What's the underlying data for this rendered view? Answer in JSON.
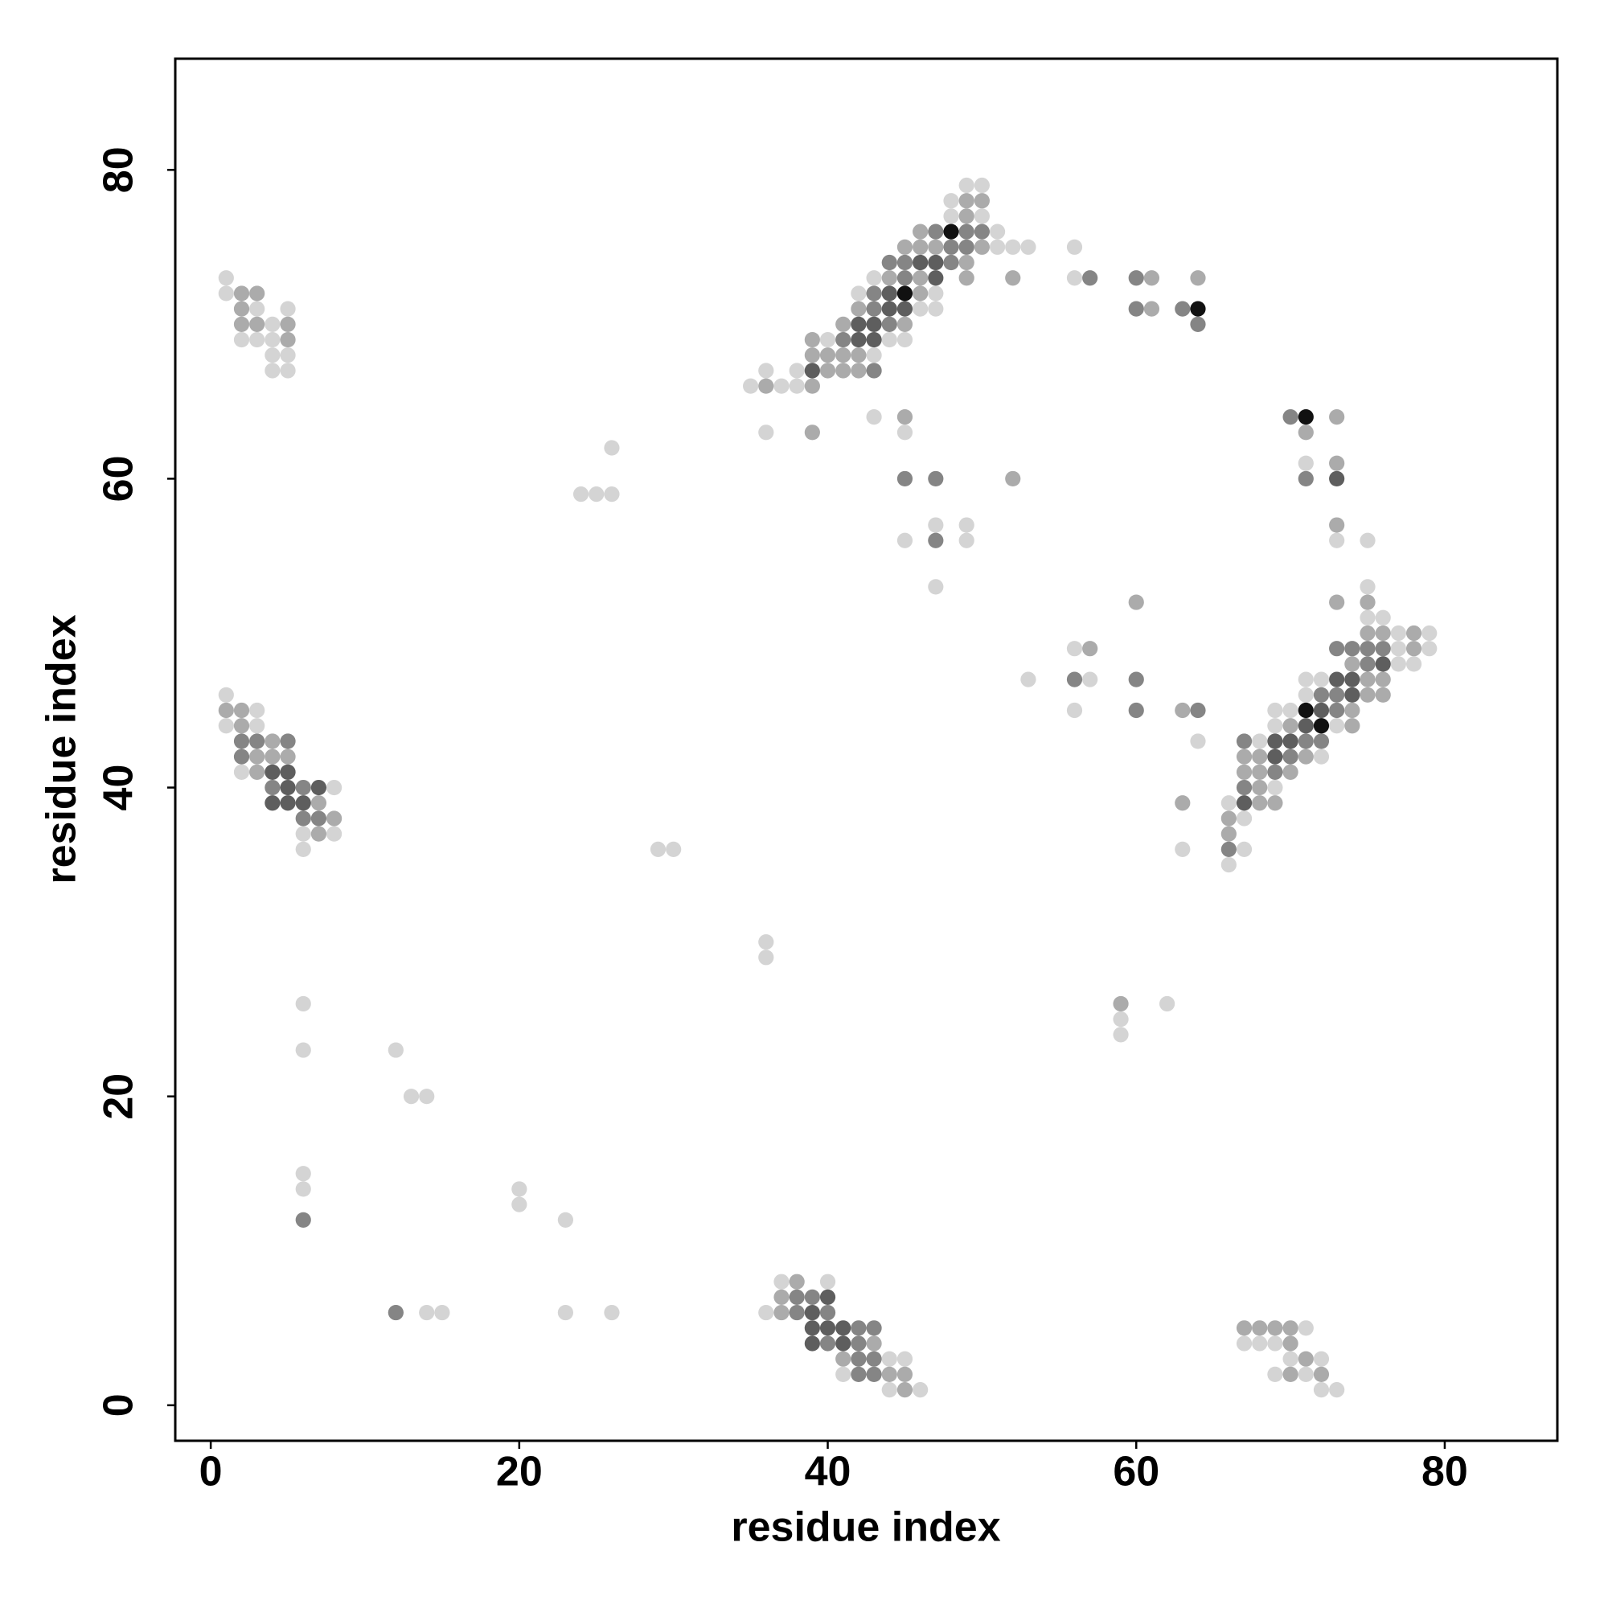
{
  "chart_data": {
    "type": "scatter",
    "x_label": "residue index",
    "y_label": "residue index",
    "xlim": [
      -2.3,
      87.3
    ],
    "ylim": [
      -2.3,
      87.2
    ],
    "xticks": [
      0,
      20,
      40,
      60,
      80
    ],
    "yticks": [
      0,
      20,
      40,
      60,
      80
    ],
    "series": [
      {
        "color": "#d4d4d4",
        "x": [
          1,
          1,
          3,
          5,
          4,
          2,
          3,
          4,
          4,
          5,
          4,
          5,
          1,
          3,
          1,
          3,
          2,
          8,
          6,
          8,
          6,
          6,
          6,
          12,
          13,
          14,
          6,
          6,
          20,
          20,
          23,
          14,
          15,
          23,
          26,
          29,
          30,
          24,
          25,
          26,
          26,
          36,
          36,
          37,
          40,
          36,
          44,
          45,
          41,
          44,
          46,
          71,
          67,
          68,
          69,
          70,
          72,
          69,
          71,
          72,
          73,
          59,
          59,
          62,
          63,
          53,
          56,
          57,
          56,
          64,
          75,
          75,
          76,
          77,
          79,
          77,
          79,
          77,
          78,
          71,
          72,
          71,
          69,
          70,
          69,
          73,
          68,
          72,
          69,
          66,
          67,
          67,
          66,
          71,
          73,
          75,
          36,
          43,
          45,
          47,
          49,
          45,
          49,
          47,
          49,
          50,
          48,
          48,
          50,
          51,
          51,
          52,
          53,
          43,
          42,
          47,
          46,
          47,
          40,
          44,
          45,
          43,
          36,
          38,
          35,
          37,
          38,
          56,
          56
        ],
        "values": [
          73,
          72,
          71,
          71,
          70,
          69,
          69,
          69,
          68,
          68,
          67,
          67,
          46,
          45,
          44,
          44,
          41,
          40,
          37,
          37,
          36,
          26,
          23,
          23,
          20,
          20,
          15,
          14,
          14,
          13,
          12,
          6,
          6,
          6,
          6,
          36,
          36,
          59,
          59,
          59,
          62,
          30,
          29,
          8,
          8,
          6,
          3,
          3,
          2,
          1,
          1,
          5,
          4,
          4,
          4,
          3,
          3,
          2,
          2,
          1,
          1,
          25,
          24,
          26,
          36,
          47,
          49,
          47,
          45,
          43,
          53,
          51,
          51,
          50,
          50,
          49,
          49,
          48,
          48,
          47,
          47,
          46,
          45,
          45,
          44,
          44,
          43,
          42,
          40,
          39,
          38,
          36,
          35,
          61,
          56,
          56,
          63,
          64,
          63,
          57,
          57,
          56,
          56,
          53,
          79,
          79,
          78,
          77,
          77,
          76,
          75,
          75,
          75,
          73,
          72,
          72,
          71,
          71,
          69,
          69,
          69,
          68,
          67,
          67,
          66,
          66,
          66,
          75,
          73
        ]
      },
      {
        "color": "#ababab",
        "x": [
          2,
          3,
          2,
          2,
          3,
          5,
          5,
          1,
          2,
          2,
          4,
          3,
          4,
          5,
          3,
          7,
          8,
          7,
          38,
          37,
          37,
          43,
          41,
          44,
          45,
          45,
          67,
          68,
          69,
          70,
          70,
          71,
          70,
          72,
          59,
          63,
          57,
          60,
          63,
          73,
          75,
          75,
          76,
          78,
          78,
          74,
          75,
          76,
          75,
          76,
          74,
          70,
          74,
          67,
          68,
          71,
          67,
          68,
          70,
          68,
          68,
          69,
          66,
          66,
          73,
          71,
          73,
          73,
          39,
          45,
          52,
          49,
          50,
          49,
          46,
          45,
          46,
          47,
          50,
          49,
          44,
          46,
          49,
          52,
          46,
          42,
          41,
          45,
          39,
          39,
          40,
          41,
          42,
          40,
          41,
          42,
          36,
          39,
          61,
          61,
          64
        ],
        "values": [
          72,
          72,
          71,
          70,
          70,
          70,
          69,
          45,
          45,
          44,
          43,
          42,
          42,
          42,
          41,
          39,
          38,
          37,
          8,
          7,
          6,
          4,
          3,
          2,
          2,
          1,
          5,
          5,
          5,
          5,
          4,
          3,
          2,
          2,
          26,
          39,
          49,
          52,
          45,
          52,
          52,
          50,
          50,
          50,
          49,
          48,
          47,
          47,
          46,
          46,
          45,
          44,
          44,
          42,
          42,
          42,
          41,
          41,
          41,
          40,
          39,
          39,
          38,
          37,
          64,
          63,
          61,
          57,
          63,
          64,
          60,
          78,
          78,
          77,
          76,
          75,
          75,
          75,
          75,
          74,
          73,
          73,
          73,
          73,
          72,
          71,
          70,
          70,
          69,
          68,
          68,
          68,
          68,
          67,
          67,
          67,
          66,
          66,
          73,
          71,
          73
        ]
      },
      {
        "color": "#858585",
        "x": [
          2,
          3,
          5,
          2,
          4,
          6,
          6,
          7,
          6,
          12,
          38,
          39,
          38,
          40,
          42,
          43,
          40,
          42,
          42,
          43,
          42,
          43,
          56,
          60,
          60,
          64,
          73,
          74,
          75,
          76,
          75,
          72,
          73,
          73,
          67,
          71,
          72,
          70,
          69,
          67,
          66,
          70,
          71,
          45,
          47,
          47,
          47,
          49,
          50,
          48,
          49,
          44,
          45,
          48,
          45,
          43,
          43,
          44,
          41,
          43,
          57,
          60,
          60,
          63,
          64
        ],
        "values": [
          43,
          43,
          43,
          42,
          40,
          40,
          38,
          38,
          12,
          6,
          7,
          7,
          6,
          6,
          5,
          5,
          4,
          4,
          3,
          3,
          2,
          2,
          47,
          47,
          45,
          45,
          49,
          49,
          49,
          49,
          48,
          46,
          46,
          45,
          43,
          43,
          43,
          42,
          41,
          40,
          36,
          64,
          60,
          60,
          60,
          56,
          76,
          76,
          76,
          75,
          75,
          74,
          74,
          74,
          73,
          72,
          71,
          70,
          69,
          67,
          73,
          73,
          71,
          71,
          70
        ]
      },
      {
        "color": "#5e5e5e",
        "x": [
          4,
          5,
          5,
          7,
          4,
          5,
          6,
          40,
          39,
          39,
          40,
          41,
          39,
          41,
          76,
          73,
          74,
          74,
          72,
          71,
          69,
          70,
          69,
          67,
          73,
          46,
          47,
          47,
          44,
          44,
          45,
          42,
          43,
          42,
          43,
          39
        ],
        "values": [
          41,
          41,
          40,
          40,
          39,
          39,
          39,
          7,
          6,
          5,
          5,
          5,
          4,
          4,
          48,
          47,
          47,
          46,
          45,
          44,
          43,
          43,
          42,
          39,
          60,
          74,
          74,
          73,
          72,
          71,
          71,
          70,
          70,
          69,
          69,
          67
        ]
      },
      {
        "color": "#111111",
        "x": [
          71,
          72,
          71,
          48,
          45,
          64
        ],
        "values": [
          45,
          44,
          64,
          76,
          72,
          71
        ]
      }
    ]
  }
}
